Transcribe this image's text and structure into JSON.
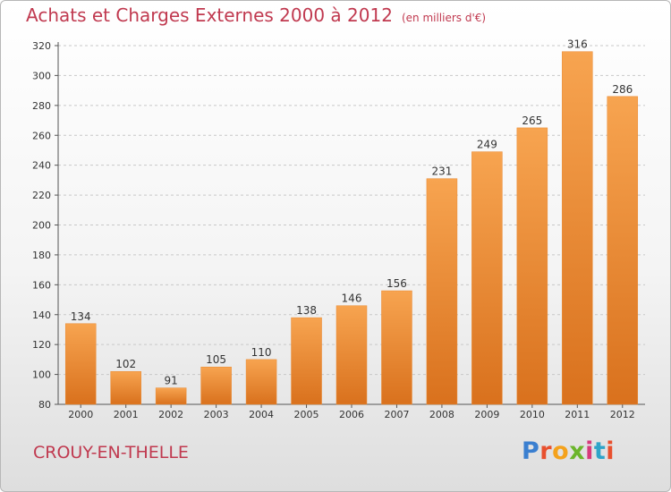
{
  "header": {
    "title": "Achats et Charges Externes 2000 à 2012",
    "unit": "(en milliers d'€)"
  },
  "footer": {
    "place": "CROUY-EN-THELLE",
    "logo": "Proxiti"
  },
  "colors": {
    "title": "#c0394f",
    "bar_light": "#f7a450",
    "bar_dark": "#d9711d",
    "grid": "#c8c8c8"
  },
  "chart_data": {
    "type": "bar",
    "title": "Achats et Charges Externes 2000 à 2012",
    "subtitle": "(en milliers d'€)",
    "xlabel": "",
    "ylabel": "",
    "categories": [
      "2000",
      "2001",
      "2002",
      "2003",
      "2004",
      "2005",
      "2006",
      "2007",
      "2008",
      "2009",
      "2010",
      "2011",
      "2012"
    ],
    "values": [
      134,
      102,
      91,
      105,
      110,
      138,
      146,
      156,
      231,
      249,
      265,
      316,
      286
    ],
    "ylim": [
      80,
      320
    ],
    "yticks": [
      80,
      100,
      120,
      140,
      160,
      180,
      200,
      220,
      240,
      260,
      280,
      300,
      320
    ],
    "grid": true,
    "data_labels": true
  }
}
